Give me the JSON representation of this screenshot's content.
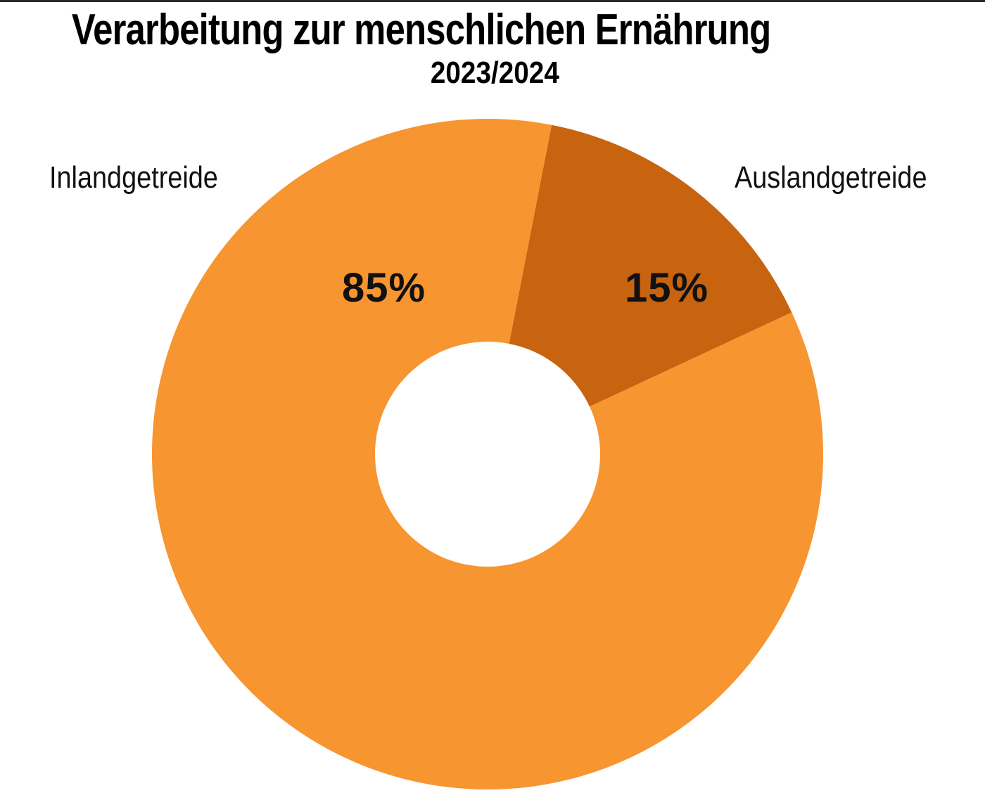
{
  "header": {
    "title": "Verarbeitung zur menschlichen Ernährung",
    "subtitle": "2023/2024"
  },
  "colors": {
    "inland": "#F79530",
    "ausland": "#C86310",
    "hole": "#FFFFFF",
    "rule": "#2A2A2A"
  },
  "chart_data": {
    "type": "pie",
    "variant": "donut",
    "title": "Verarbeitung zur menschlichen Ernährung",
    "subtitle": "2023/2024",
    "categories": [
      "Inlandgetreide",
      "Auslandgetreide"
    ],
    "values": [
      85,
      15
    ],
    "unit": "%",
    "data_labels": [
      "85%",
      "15%"
    ],
    "colors": [
      "#F79530",
      "#C86310"
    ],
    "start_angle_deg": 11,
    "legend": "none (direct labels)",
    "grid": false
  },
  "labels": {
    "inland": {
      "name": "Inlandgetreide",
      "value": "85%"
    },
    "ausland": {
      "name": "Auslandgetreide",
      "value": "15%"
    }
  }
}
